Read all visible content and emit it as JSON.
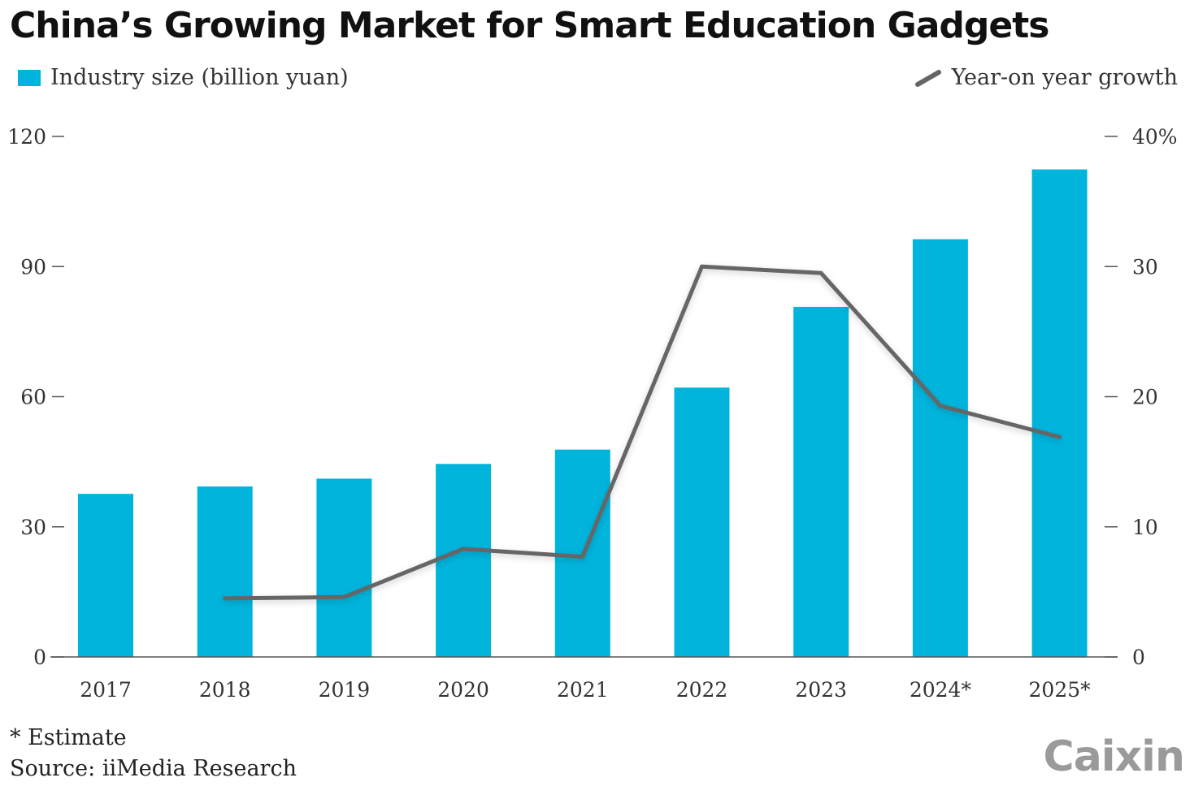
{
  "chart_data": {
    "type": "bar",
    "title": "China’s Growing Market for Smart Education Gadgets",
    "categories": [
      "2017",
      "2018",
      "2019",
      "2020",
      "2021",
      "2022",
      "2023",
      "2024*",
      "2025*"
    ],
    "series": [
      {
        "name": "Industry size (billion yuan)",
        "type": "bar",
        "axis": "left",
        "color": "#00b4dc",
        "values": [
          37.6,
          39.3,
          41.1,
          44.5,
          47.8,
          62.1,
          80.7,
          96.3,
          112.4
        ]
      },
      {
        "name": "Year-on year growth",
        "type": "line",
        "axis": "right",
        "color": "#666666",
        "values": [
          null,
          4.5,
          4.6,
          8.3,
          7.7,
          30.0,
          29.5,
          19.3,
          16.9
        ]
      }
    ],
    "y_left": {
      "ylim": [
        0,
        120
      ],
      "ticks": [
        0,
        30,
        60,
        90,
        120
      ],
      "tick_labels": [
        "0",
        "30",
        "60",
        "90",
        "120"
      ]
    },
    "y_right": {
      "ylim": [
        0,
        40
      ],
      "ticks": [
        0,
        10,
        20,
        30,
        40
      ],
      "tick_labels": [
        "0",
        "10",
        "20",
        "30",
        "40%"
      ]
    },
    "legend": "top",
    "grid": false
  },
  "footnote": "* Estimate",
  "source": "Source: iiMedia Research",
  "logo": "Caixin"
}
